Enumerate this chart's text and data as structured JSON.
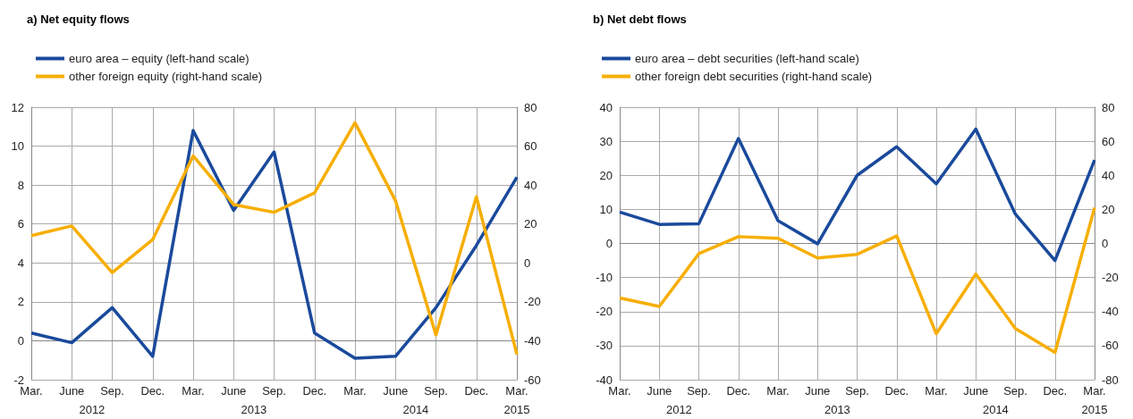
{
  "chart_data": [
    {
      "type": "line",
      "title": "a) Net equity flows",
      "categories": [
        "Mar.",
        "June",
        "Sep.",
        "Dec.",
        "Mar.",
        "June",
        "Sep.",
        "Dec.",
        "Mar.",
        "June",
        "Sep.",
        "Dec.",
        "Mar."
      ],
      "series": [
        {
          "name": "euro area – equity (left-hand scale)",
          "color": "#1a4a9c",
          "values": [
            0.4,
            -0.1,
            1.7,
            -0.8,
            10.8,
            6.7,
            9.7,
            0.4,
            -0.9,
            -0.8,
            1.7,
            4.9,
            8.4
          ]
        },
        {
          "name": "other foreign equity (right-hand scale)",
          "color": "#f7ae00",
          "axis": "y2",
          "values": [
            14,
            19,
            -5,
            12,
            55,
            30,
            26,
            36,
            72,
            32,
            -37,
            34,
            -47
          ]
        }
      ],
      "ylim": [
        -2,
        12
      ],
      "yticks": [
        -2,
        0,
        2,
        4,
        6,
        8,
        10,
        12
      ],
      "y2lim": [
        -60,
        80
      ],
      "y2ticks": [
        -60,
        -40,
        -20,
        0,
        20,
        40,
        60,
        80
      ],
      "annotations": [
        "2012",
        "2013",
        "2014",
        "2015"
      ],
      "grid": true,
      "legend": "top left",
      "marker": "none",
      "line_style": "solid"
    },
    {
      "type": "line",
      "title": "b) Net debt flows",
      "categories": [
        "Mar.",
        "June",
        "Sep.",
        "Dec.",
        "Mar.",
        "June",
        "Sep.",
        "Dec.",
        "Mar.",
        "June",
        "Sep.",
        "Dec.",
        "Mar."
      ],
      "series": [
        {
          "name": "euro area – debt securities (left-hand scale)",
          "color": "#1a4a9c",
          "values": [
            9.2,
            5.6,
            5.8,
            30.8,
            6.7,
            -0.1,
            20,
            28.4,
            17.5,
            33.6,
            8.6,
            -5,
            24.5
          ]
        },
        {
          "name": "other foreign debt securities (right-hand scale)",
          "color": "#f7ae00",
          "axis": "y2",
          "values": [
            -32,
            -37,
            -6,
            4,
            3,
            -8.5,
            -6.4,
            4.4,
            -53,
            -18,
            -50,
            -64,
            21
          ]
        }
      ],
      "ylim": [
        -40,
        40
      ],
      "yticks": [
        -40,
        -30,
        -20,
        -10,
        0,
        10,
        20,
        30,
        40
      ],
      "y2lim": [
        -80,
        80
      ],
      "y2ticks": [
        -80,
        -60,
        -40,
        -20,
        0,
        20,
        40,
        60,
        80
      ],
      "annotations": [
        "2012",
        "2013",
        "2014",
        "2015"
      ],
      "grid": true,
      "legend": "top left",
      "marker": "none",
      "line_style": "solid"
    }
  ]
}
